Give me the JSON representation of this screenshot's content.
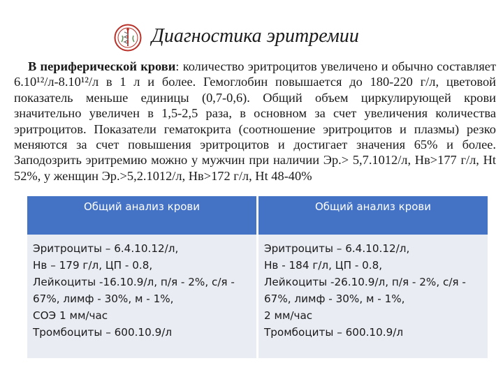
{
  "slide": {
    "title": "Диагностика эритремии",
    "logo_icon": "medical-emblem-icon"
  },
  "paragraph": {
    "lead": "В периферической крови",
    "body": ": количество эритроцитов увеличено и обычно составляет 6.10¹²/л-8.10¹²/л в 1 л и более. Гемоглобин повышается до 180-220 г/л, цветовой показатель меньше единицы (0,7-0,6).  Общий объем циркулирующей крови значительно увеличен в 1,5-2,5 раза, в основном за счет увеличения количества эритроцитов. Показатели гематокрита (соотношение эритроцитов и плазмы) резко меняются за счет повышения эритроцитов и достигает значения 65% и более. Заподозрить эритремию можно у мужчин при наличии Эр.> 5,7.1012/л, Нв>177 г/л, Ht 52%, у женщин Эр.>5,2.1012/л, Нв>172 г/л, Ht 48-40%"
  },
  "table": {
    "headers": [
      "Общий анализ крови",
      "Общий анализ крови"
    ],
    "columns": [
      {
        "lines": [
          "Эритроциты – 6.4.10.12/л,",
          "Нв – 179 г/л, ЦП - 0.8,",
          "Лейкоциты -16.10.9/л, п/я - 2%, с/я -",
          "67%, лимф - 30%, м - 1%,",
          "СОЭ 1 мм/час",
          "Тромбоциты – 600.10.9/л"
        ]
      },
      {
        "lines": [
          "Эритроциты – 6.4.10.12/л,",
          "Нв - 184 г/л, ЦП - 0.8,",
          "Лейкоциты -26.10.9/л, п/я - 2%, с/я -",
          "67%, лимф - 30%, м - 1%,",
          "2 мм/час",
          "Тромбоциты – 600.10.9/л"
        ]
      }
    ]
  },
  "colors": {
    "header_bg": "#4472c4",
    "cell_bg": "#e9ecf3",
    "logo_red": "#b8322a"
  }
}
